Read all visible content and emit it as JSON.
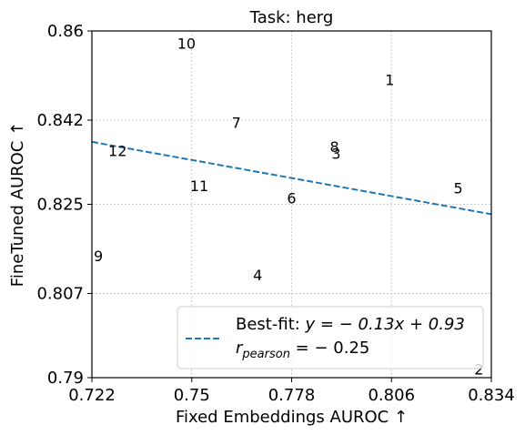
{
  "chart_data": {
    "type": "scatter",
    "title": "Task: herg",
    "xlabel": "Fixed Embeddings AUROC ↑",
    "ylabel": "FineTuned AUROC ↑",
    "xlim": [
      0.722,
      0.834
    ],
    "ylim": [
      0.79,
      0.86
    ],
    "xticks": [
      "0.722",
      "0.75",
      "0.778",
      "0.806",
      "0.834"
    ],
    "yticks": [
      "0.79",
      "0.807",
      "0.825",
      "0.842",
      "0.86"
    ],
    "grid": true,
    "legend_position": "lower-right",
    "points": [
      {
        "label": "1",
        "x": 0.8055,
        "y": 0.8502
      },
      {
        "label": "2",
        "x": 0.8305,
        "y": 0.7917
      },
      {
        "label": "3",
        "x": 0.7905,
        "y": 0.8353
      },
      {
        "label": "4",
        "x": 0.7685,
        "y": 0.8108
      },
      {
        "label": "5",
        "x": 0.8247,
        "y": 0.8283
      },
      {
        "label": "6",
        "x": 0.778,
        "y": 0.8263
      },
      {
        "label": "7",
        "x": 0.7625,
        "y": 0.8415
      },
      {
        "label": "8",
        "x": 0.79,
        "y": 0.8367
      },
      {
        "label": "9",
        "x": 0.7238,
        "y": 0.8146
      },
      {
        "label": "10",
        "x": 0.7485,
        "y": 0.8575
      },
      {
        "label": "11",
        "x": 0.7521,
        "y": 0.8288
      },
      {
        "label": "12",
        "x": 0.7292,
        "y": 0.8358
      }
    ],
    "fit_line": {
      "slope": -0.13,
      "intercept": 0.93,
      "x_range": [
        0.722,
        0.834
      ],
      "y_at_xmin": 0.8376,
      "y_at_xmax": 0.823,
      "color": "#1f77b4",
      "style": "dashed"
    },
    "legend": {
      "line1_prefix": "Best-fit: ",
      "line1_eq": "y = − 0.13x + 0.93",
      "line2_r": "r",
      "line2_sub": "pearson",
      "line2_rest": " = − 0.25"
    }
  }
}
